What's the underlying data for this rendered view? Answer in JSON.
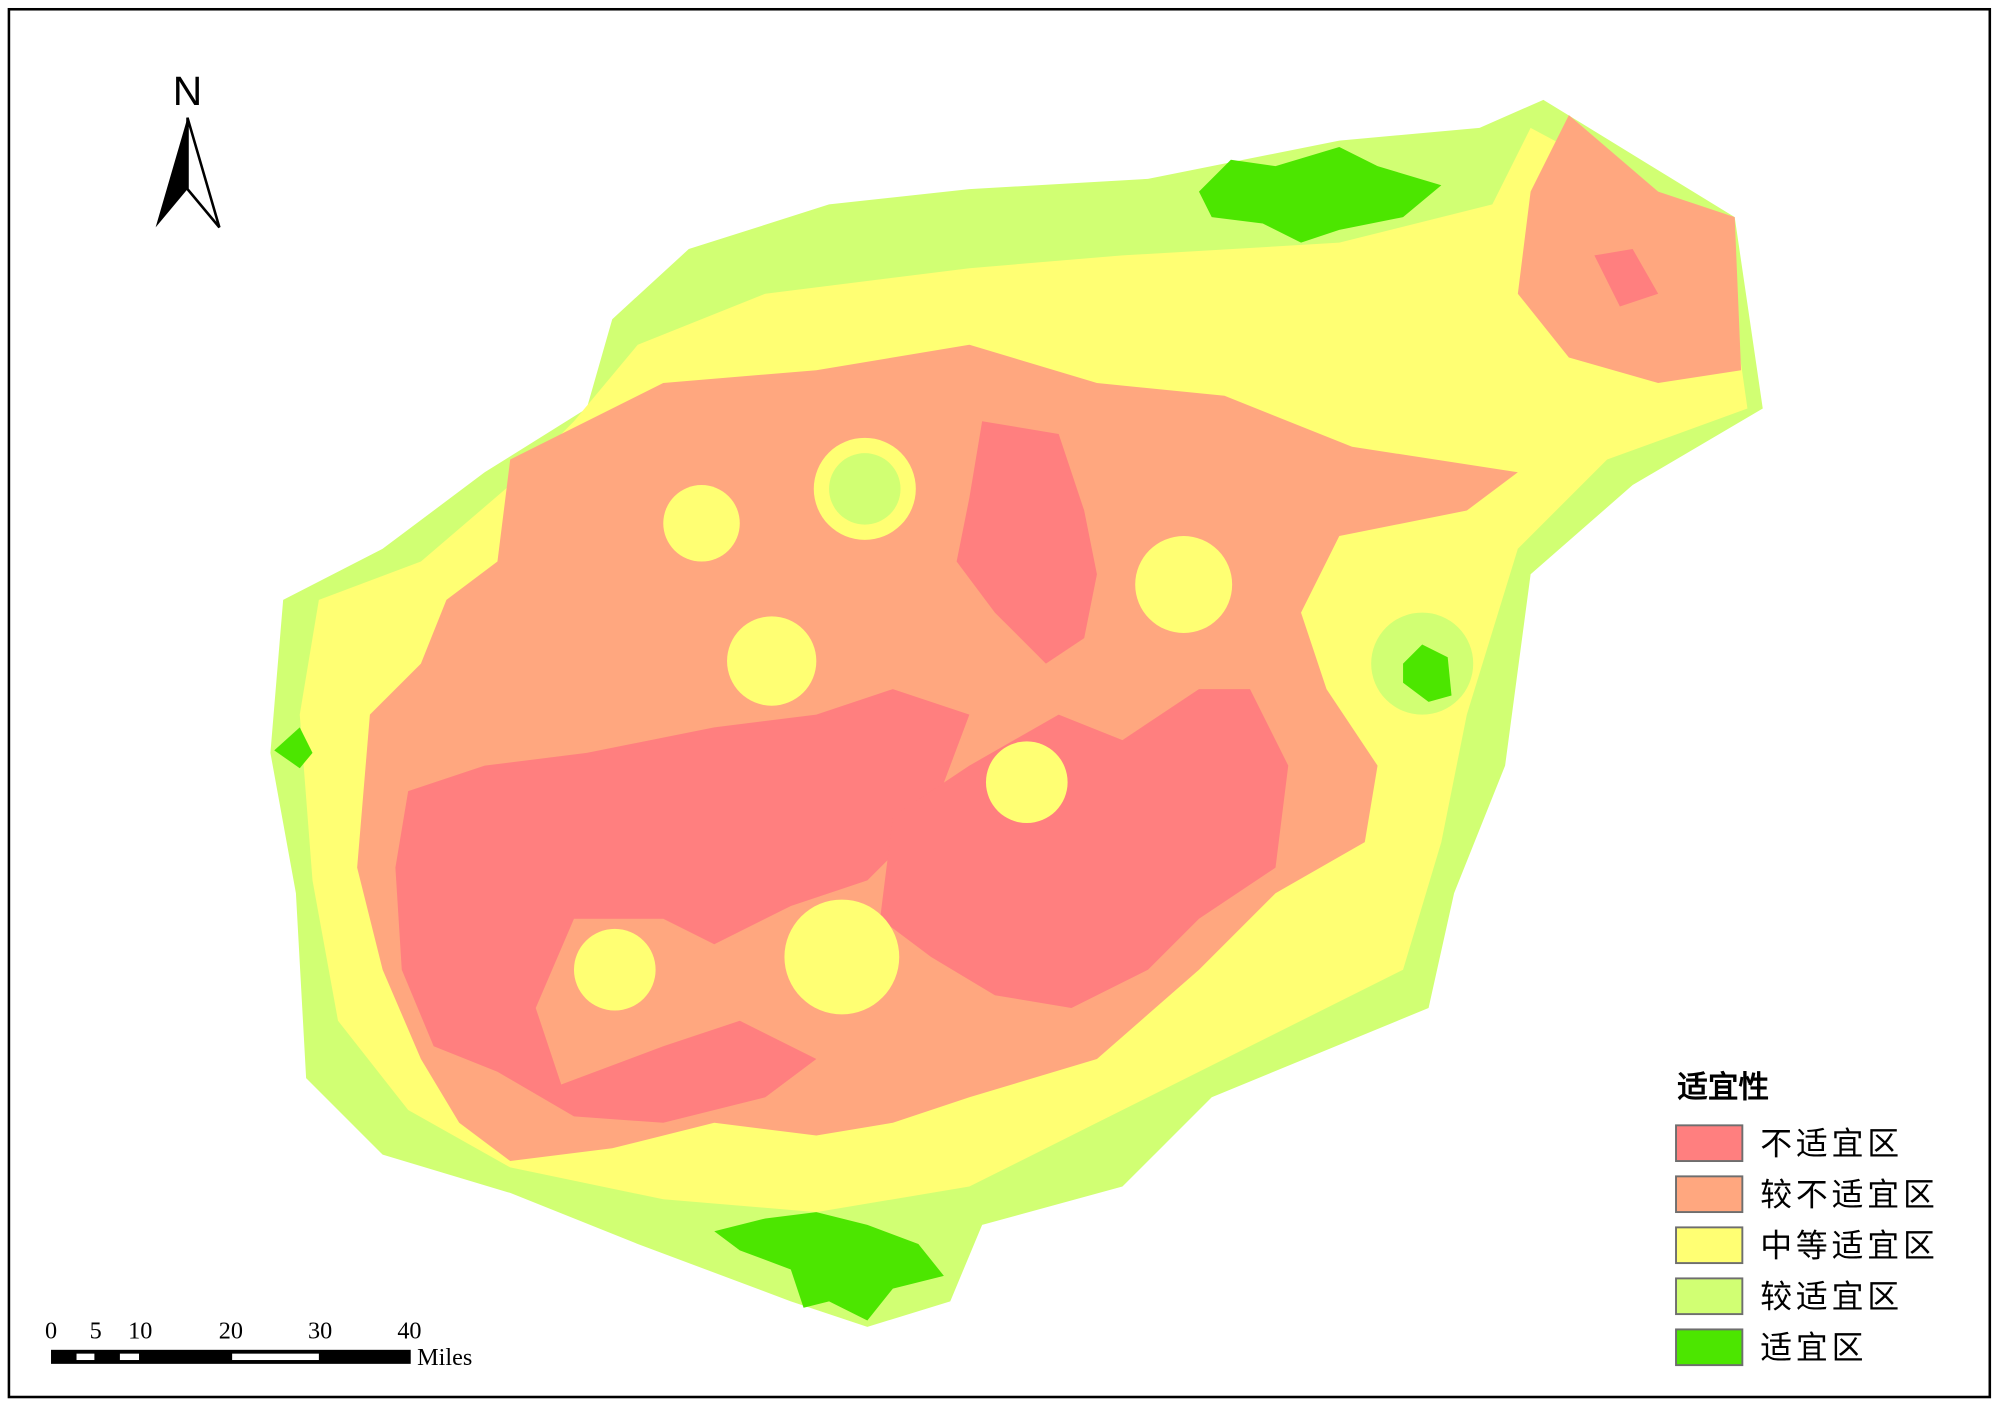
{
  "map": {
    "north_label": "N",
    "legend": {
      "title": "适宜性",
      "items": [
        {
          "label": "不适宜区",
          "color": "#ff7f7f"
        },
        {
          "label": "较不适宜区",
          "color": "#ffa77f"
        },
        {
          "label": "中等适宜区",
          "color": "#ffff73"
        },
        {
          "label": "较适宜区",
          "color": "#d1ff73"
        },
        {
          "label": "适宜区",
          "color": "#4ce600"
        }
      ]
    },
    "scale_bar": {
      "ticks": [
        "0",
        "5",
        "10",
        "20",
        "30",
        "40"
      ],
      "unit": "Miles"
    }
  }
}
